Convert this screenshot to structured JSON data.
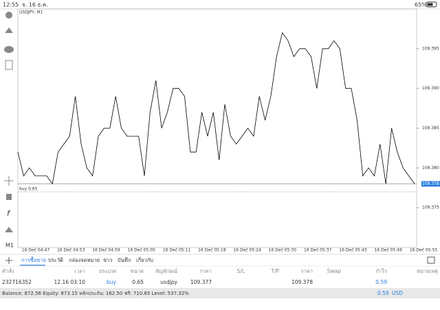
{
  "status_bar": {
    "time": "12:55",
    "date": "จ. 16 ธ.ค.",
    "battery": "65%"
  },
  "chart_data": {
    "type": "line",
    "title": "USDJPY, M1",
    "series": [
      {
        "name": "USDJPY",
        "color": "#000000",
        "values": [
          109.382,
          109.379,
          109.38,
          109.379,
          109.379,
          109.379,
          109.378,
          109.382,
          109.383,
          109.384,
          109.389,
          109.383,
          109.38,
          109.379,
          109.384,
          109.385,
          109.385,
          109.389,
          109.385,
          109.384,
          109.384,
          109.384,
          109.379,
          109.387,
          109.391,
          109.385,
          109.387,
          109.39,
          109.39,
          109.389,
          109.382,
          109.382,
          109.387,
          109.384,
          109.387,
          109.381,
          109.388,
          109.384,
          109.383,
          109.384,
          109.385,
          109.384,
          109.389,
          109.386,
          109.389,
          109.394,
          109.397,
          109.396,
          109.394,
          109.395,
          109.395,
          109.394,
          109.39,
          109.395,
          109.395,
          109.396,
          109.395,
          109.39,
          109.39,
          109.386,
          109.379,
          109.38,
          109.379,
          109.383,
          109.378,
          109.385,
          109.382,
          109.38,
          109.379,
          109.378
        ]
      }
    ],
    "x_labels": [
      "16 Dec 04:47",
      "16 Dec 04:53",
      "16 Dec 04:59",
      "16 Dec 05:05",
      "16 Dec 05:11",
      "16 Dec 05:18",
      "16 Dec 05:24",
      "16 Dec 05:30",
      "16 Dec 05:37",
      "16 Dec 05:43",
      "16 Dec 05:49",
      "16 Dec 05:55"
    ],
    "ylim": [
      109.37,
      109.4
    ],
    "yticks": [
      109.375,
      {
        "value": 109.38,
        "label": "109.380"
      },
      109.385,
      {
        "value": 109.39,
        "label": "109.390"
      },
      109.395
    ],
    "current_price": 109.378,
    "buy_line": {
      "label": "buy 0.65",
      "value": 109.377
    },
    "timeframe": "M1"
  },
  "tabs": [
    "การซื้อขาย",
    "ประวัติ",
    "กล่องจดหมาย",
    "ข่าว",
    "บันทึก",
    "เกี่ยวกับ"
  ],
  "table": {
    "headers": [
      "คำสั่ง",
      "เวลา",
      "ประเภท",
      "ขนาด",
      "สัญลักษณ์",
      "ราคา",
      "S/L",
      "T/P",
      "ราคา",
      "Swap",
      "กำไร",
      "หมายเหตุ"
    ],
    "row": {
      "order": "232716352",
      "time": "12.16 03:10",
      "type": "buy",
      "volume": "0.65",
      "symbol": "usdjpy",
      "open_price": "109.377",
      "current_price": "109.378",
      "profit": "0.59"
    }
  },
  "footer": {
    "summary": "Balance: 872.56 Equity: 873.15 หลักประกัน: 162.50 ฟรี: 710.65 Level: 537.32%",
    "profit": "0.59",
    "currency": "USD"
  }
}
